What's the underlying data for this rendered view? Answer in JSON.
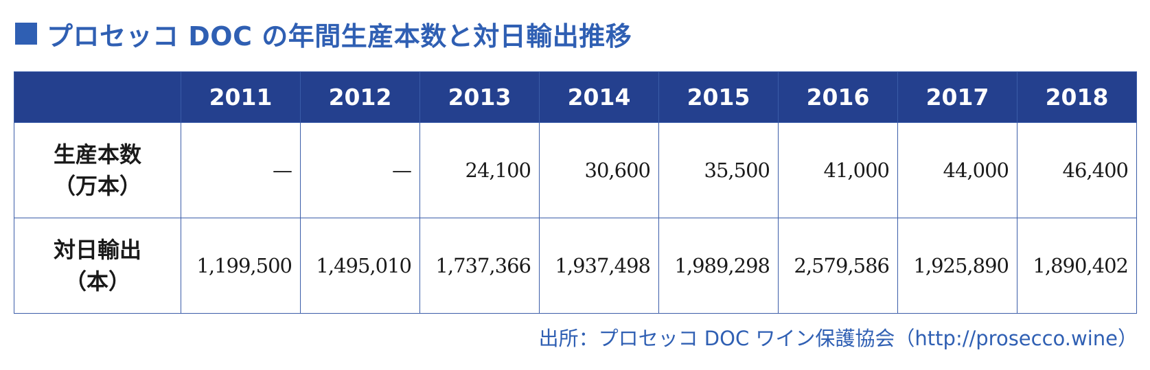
{
  "title": "プロセッコ DOC の年間生産本数と対日輸出推移",
  "colors": {
    "accent": "#2f5fb3",
    "header_bg": "#24408e",
    "header_text": "#ffffff"
  },
  "table": {
    "header": [
      "",
      "2011",
      "2012",
      "2013",
      "2014",
      "2015",
      "2016",
      "2017",
      "2018"
    ],
    "rows": [
      {
        "label_line1": "生産本数",
        "label_line2": "（万本）",
        "values": [
          "—",
          "—",
          "24,100",
          "30,600",
          "35,500",
          "41,000",
          "44,000",
          "46,400"
        ]
      },
      {
        "label_line1": "対日輸出",
        "label_line2": "（本）",
        "values": [
          "1,199,500",
          "1,495,010",
          "1,737,366",
          "1,937,498",
          "1,989,298",
          "2,579,586",
          "1,925,890",
          "1,890,402"
        ]
      }
    ]
  },
  "source": "出所：プロセッコ DOC ワイン保護協会（http://prosecco.wine）"
}
